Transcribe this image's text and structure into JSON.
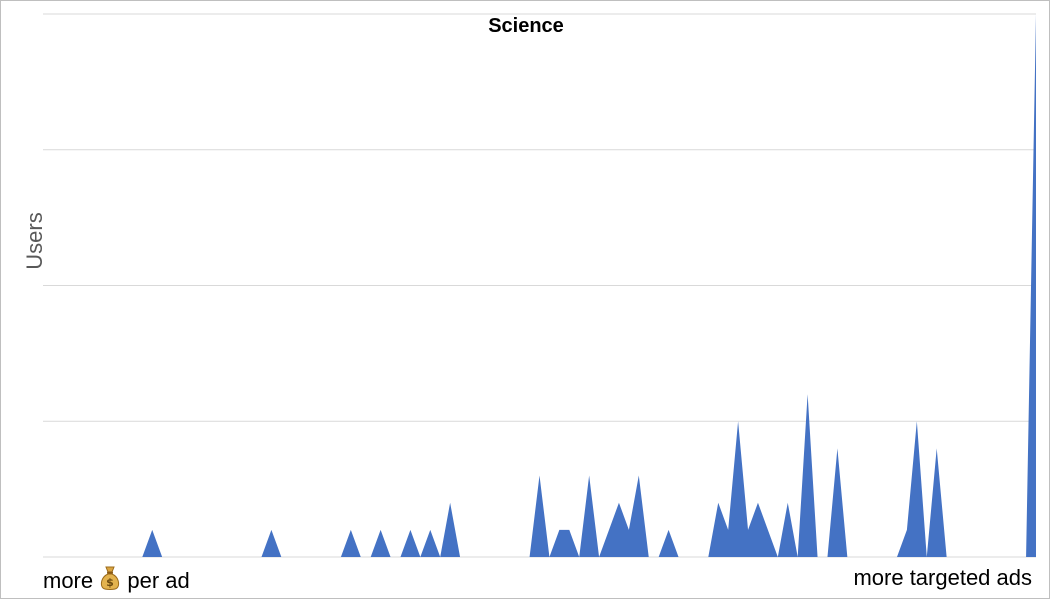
{
  "chart_data": {
    "type": "area",
    "title": "Science",
    "ylabel": "Users",
    "x_left_label_before": "more",
    "x_left_label_icon": "money-bag-icon",
    "x_left_label_after": "per ad",
    "x_right_label": "more targeted ads",
    "grid": true,
    "ylim": [
      0,
      20
    ],
    "series": [
      {
        "color": "#4472c4",
        "values": [
          0,
          0,
          0,
          0,
          0,
          0,
          0,
          0,
          0,
          0,
          0,
          1,
          0,
          0,
          0,
          0,
          0,
          0,
          0,
          0,
          0,
          0,
          0,
          1,
          0,
          0,
          0,
          0,
          0,
          0,
          0,
          1,
          0,
          0,
          1,
          0,
          0,
          1,
          0,
          1,
          0,
          2,
          0,
          0,
          0,
          0,
          0,
          0,
          0,
          0,
          3,
          0,
          1,
          1,
          0,
          3,
          0,
          1,
          2,
          1,
          3,
          0,
          0,
          1,
          0,
          0,
          0,
          0,
          2,
          1,
          5,
          1,
          2,
          1,
          0,
          2,
          0,
          6,
          0,
          0,
          4,
          0,
          0,
          0,
          0,
          0,
          0,
          1,
          5,
          0,
          4,
          0,
          0,
          0,
          0,
          0,
          0,
          0,
          0,
          0,
          20
        ]
      }
    ]
  }
}
